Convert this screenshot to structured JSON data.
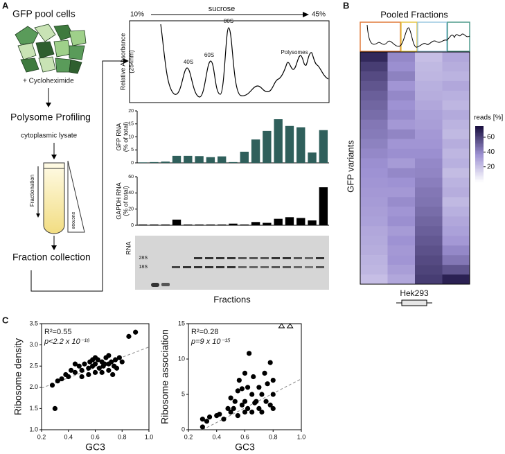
{
  "panel_a": {
    "letter": "A",
    "cells_title": "GFP pool cells",
    "treatment": "+ Cycloheximide",
    "step": "Polysome Profiling",
    "lysate": "cytoplasmic lysate",
    "fractionation": "Fractionation",
    "tube_gradient": "sucrose",
    "collection": "Fraction collection",
    "gradient_label": "sucrose",
    "gradient_start": "10%",
    "gradient_end": "45%",
    "trace_ylabel": [
      "Relative Absorbance",
      "(254nm)"
    ],
    "peaks": [
      "40S",
      "60S",
      "80S",
      "Polysomes"
    ],
    "gel_label": "RNA",
    "gel_bands": [
      "28S",
      "18S"
    ],
    "gel_xlabel": "Fractions"
  },
  "panel_b": {
    "letter": "B",
    "title": "Pooled Fractions",
    "ylabel": "GFP variants",
    "xlabel": "Hek293"
  },
  "panel_c": {
    "letter": "C"
  },
  "chart_data": [
    {
      "type": "bar",
      "ylabel": [
        "GFP RNA",
        "(% of total)"
      ],
      "color": "#2f5f5b",
      "values": [
        0.2,
        0.3,
        0.5,
        2.7,
        2.7,
        2.6,
        2.2,
        2.5,
        0.3,
        4.3,
        9,
        12.3,
        16.8,
        14.2,
        13.7,
        4,
        12.6
      ],
      "ylim": [
        0,
        20
      ],
      "yticks": [
        0,
        5,
        10,
        15,
        20
      ]
    },
    {
      "type": "bar",
      "ylabel": [
        "GAPDH RNA",
        "(% of total)"
      ],
      "color": "#000000",
      "values": [
        1,
        1,
        1,
        7,
        1,
        1,
        1,
        1,
        2,
        1,
        4,
        3,
        8,
        10,
        9,
        6,
        47
      ],
      "ylim": [
        0,
        60
      ],
      "yticks": [
        0,
        20,
        40,
        60
      ]
    },
    {
      "type": "heatmap",
      "colorbar_label": "reads [%]",
      "colors": [
        "#ffffff",
        "#9d91d2",
        "#1a1040"
      ],
      "clim": [
        0,
        75
      ],
      "cticks": [
        20,
        40,
        60
      ],
      "values": [
        [
          68,
          40,
          22,
          30
        ],
        [
          62,
          38,
          24,
          28
        ],
        [
          58,
          42,
          25,
          26
        ],
        [
          55,
          36,
          27,
          30
        ],
        [
          52,
          40,
          28,
          27
        ],
        [
          50,
          37,
          30,
          25
        ],
        [
          48,
          39,
          32,
          29
        ],
        [
          45,
          35,
          33,
          26
        ],
        [
          44,
          41,
          35,
          24
        ],
        [
          42,
          36,
          36,
          28
        ],
        [
          40,
          38,
          38,
          25
        ],
        [
          38,
          34,
          40,
          27
        ],
        [
          37,
          40,
          41,
          23
        ],
        [
          36,
          37,
          43,
          26
        ],
        [
          35,
          35,
          45,
          28
        ],
        [
          34,
          39,
          46,
          24
        ],
        [
          33,
          36,
          48,
          27
        ],
        [
          32,
          38,
          50,
          30
        ],
        [
          30,
          34,
          52,
          32
        ],
        [
          29,
          37,
          54,
          35
        ],
        [
          28,
          35,
          56,
          40
        ],
        [
          26,
          36,
          58,
          45
        ],
        [
          25,
          33,
          60,
          55
        ],
        [
          22,
          30,
          62,
          70
        ]
      ]
    },
    {
      "type": "scatter",
      "xlabel": "GC3",
      "ylabel": "Ribosome density",
      "annotations": [
        "R²=0.55",
        "p<2.2 x 10⁻¹⁶"
      ],
      "color": "#000000",
      "x": [
        0.3,
        0.28,
        0.32,
        0.35,
        0.38,
        0.4,
        0.42,
        0.45,
        0.48,
        0.5,
        0.52,
        0.55,
        0.56,
        0.58,
        0.6,
        0.6,
        0.62,
        0.63,
        0.65,
        0.66,
        0.68,
        0.7,
        0.7,
        0.72,
        0.74,
        0.75,
        0.76,
        0.78,
        0.8,
        0.55,
        0.6,
        0.65,
        0.7,
        0.45,
        0.5,
        0.58,
        0.67,
        0.73,
        0.85,
        0.9
      ],
      "y": [
        1.5,
        2.05,
        2.15,
        2.2,
        2.3,
        2.25,
        2.4,
        2.35,
        2.5,
        2.4,
        2.55,
        2.45,
        2.6,
        2.5,
        2.55,
        2.35,
        2.65,
        2.45,
        2.6,
        2.5,
        2.7,
        2.55,
        2.4,
        2.6,
        2.5,
        2.65,
        2.45,
        2.7,
        2.6,
        2.3,
        2.7,
        2.35,
        2.75,
        2.55,
        2.25,
        2.65,
        2.55,
        2.3,
        3.2,
        3.3
      ],
      "trend_line": {
        "x": [
          0.2,
          1.0
        ],
        "y": [
          1.98,
          2.95
        ]
      },
      "xlim": [
        0.2,
        1.0
      ],
      "xticks": [
        0.2,
        0.4,
        0.6,
        0.8,
        {
          "value": 1,
          "label": "1.0"
        }
      ],
      "ylim": [
        1,
        3.5
      ],
      "yticks": [
        {
          "value": 1,
          "label": "1.0"
        },
        1.5,
        {
          "value": 2,
          "label": "2.0"
        },
        2.5,
        {
          "value": 3,
          "label": "3.0"
        },
        3.5
      ]
    },
    {
      "type": "scatter",
      "xlabel": "GC3",
      "ylabel": "Ribosome association",
      "annotations": [
        "R²=0.28",
        "p=9 x 10⁻¹⁵"
      ],
      "color": "#000000",
      "x": [
        0.3,
        0.3,
        0.33,
        0.35,
        0.4,
        0.42,
        0.45,
        0.48,
        0.5,
        0.5,
        0.52,
        0.55,
        0.55,
        0.56,
        0.58,
        0.6,
        0.6,
        0.6,
        0.62,
        0.62,
        0.63,
        0.65,
        0.65,
        0.66,
        0.68,
        0.7,
        0.7,
        0.72,
        0.72,
        0.74,
        0.75,
        0.76,
        0.78,
        0.78,
        0.8,
        0.8,
        0.8,
        0.58,
        0.67,
        0.53
      ],
      "y": [
        0.4,
        1.5,
        1.2,
        1.8,
        2,
        2.2,
        1.5,
        3,
        2.5,
        4.5,
        3,
        5.5,
        2,
        7,
        3.5,
        4,
        2.5,
        8,
        6,
        3,
        10.8,
        5,
        2.5,
        7.5,
        4,
        6,
        3,
        5,
        2.5,
        8,
        4,
        6.5,
        3.5,
        9.5,
        5,
        7,
        3,
        5.8,
        3.8,
        4
      ],
      "outliers_x": [
        0.86,
        0.92
      ],
      "trend_line": {
        "x": [
          0.3,
          1.0
        ],
        "y": [
          0,
          7.2
        ]
      },
      "xlim": [
        0.2,
        1.0
      ],
      "xticks": [
        0.2,
        0.4,
        0.6,
        0.8,
        {
          "value": 1,
          "label": "1.0"
        }
      ],
      "ylim": [
        0,
        15
      ],
      "yticks": [
        0,
        5,
        10,
        15
      ]
    }
  ]
}
